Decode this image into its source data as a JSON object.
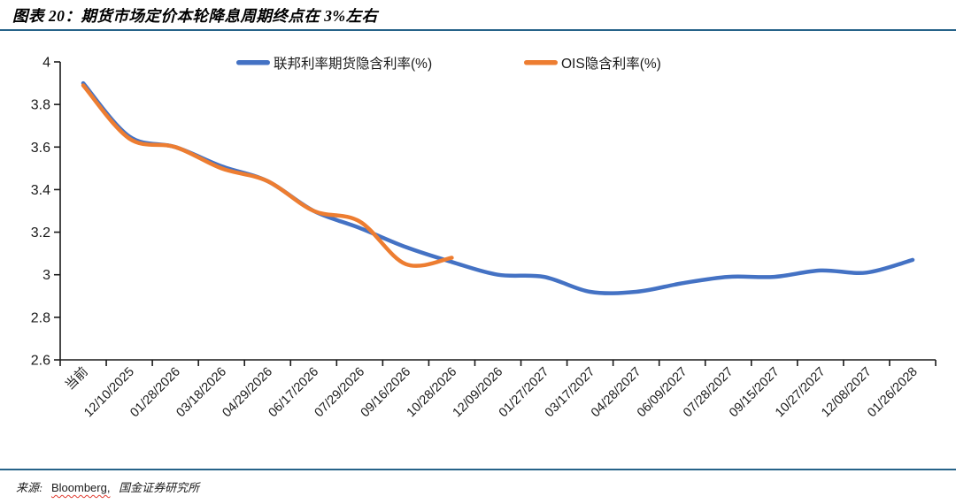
{
  "header": {
    "title": "图表 20：期货市场定价本轮降息周期终点在 3%左右"
  },
  "chart_data": {
    "type": "line",
    "title": "期货市场定价本轮降息周期终点在3%左右",
    "categories": [
      "当前",
      "12/10/2025",
      "01/28/2026",
      "03/18/2026",
      "04/29/2026",
      "06/17/2026",
      "07/29/2026",
      "09/16/2026",
      "10/28/2026",
      "12/09/2026",
      "01/27/2027",
      "03/17/2027",
      "04/28/2027",
      "06/09/2027",
      "07/28/2027",
      "09/15/2027",
      "10/27/2027",
      "12/08/2027",
      "01/26/2028"
    ],
    "series": [
      {
        "name": "联邦利率期货隐含利率(%)",
        "color": "#4472C4",
        "values": [
          3.9,
          3.65,
          3.6,
          3.51,
          3.44,
          3.3,
          3.22,
          3.13,
          3.06,
          3.0,
          2.99,
          2.92,
          2.92,
          2.96,
          2.99,
          2.99,
          3.02,
          3.01,
          3.07
        ]
      },
      {
        "name": "OIS隐含利率(%)",
        "color": "#ED7D31",
        "values": [
          3.89,
          3.64,
          3.6,
          3.5,
          3.44,
          3.3,
          3.25,
          3.05,
          3.08,
          null,
          null,
          null,
          null,
          null,
          null,
          null,
          null,
          null,
          null
        ]
      }
    ],
    "xlabel": "",
    "ylabel": "",
    "ylim": [
      2.6,
      4.0
    ],
    "ytick_values": [
      2.6,
      2.8,
      3.0,
      3.2,
      3.4,
      3.6,
      3.8,
      4.0
    ],
    "ytick_labels": [
      "2.6",
      "2.8",
      "3",
      "3.2",
      "3.4",
      "3.6",
      "3.8",
      "4"
    ],
    "grid": false,
    "legend_position": "top",
    "x_label_rotation_deg": -45
  },
  "footer": {
    "source_label": "来源:",
    "source_name": "Bloomberg,",
    "source_org": "国金证券研究所"
  },
  "colors": {
    "rule": "#266389",
    "axis": "#1a1a1a",
    "blue_series": "#4472C4",
    "orange_series": "#ED7D31",
    "spellcheck": "#e03c31"
  }
}
